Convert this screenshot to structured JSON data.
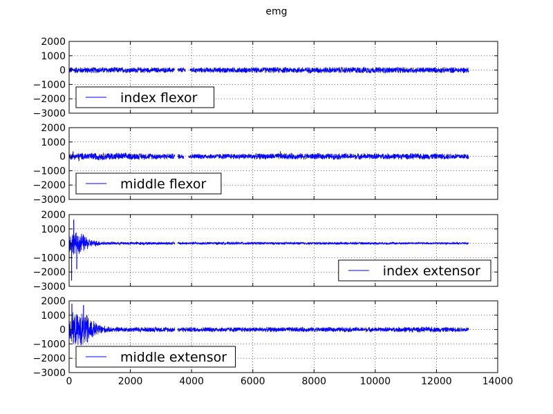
{
  "chart_data": {
    "type": "line",
    "title": "emg",
    "xlim": [
      0,
      14000
    ],
    "x_ticks": [
      "0",
      "2000",
      "4000",
      "6000",
      "8000",
      "10000",
      "12000",
      "14000"
    ],
    "grid": true,
    "line_color": "#0000ff",
    "panels": [
      {
        "series_name": "index flexor",
        "ylim": [
          -3000,
          2000
        ],
        "y_ticks": [
          "2000",
          "1000",
          "0",
          "−1000",
          "−2000",
          "−3000"
        ],
        "legend_position": "lower-left",
        "x_range": [
          0,
          13050
        ],
        "envelope": [
          [
            0,
            250
          ],
          [
            3500,
            200
          ],
          [
            9500,
            250
          ],
          [
            13050,
            220
          ]
        ],
        "spikes": [],
        "gaps": [
          [
            3450,
            3550
          ],
          [
            3800,
            3950
          ]
        ]
      },
      {
        "series_name": "middle flexor",
        "ylim": [
          -3000,
          2000
        ],
        "y_ticks": [
          "2000",
          "1000",
          "0",
          "−1000",
          "−2000",
          "−3000"
        ],
        "legend_position": "lower-left",
        "x_range": [
          0,
          13050
        ],
        "envelope": [
          [
            0,
            250
          ],
          [
            1000,
            300
          ],
          [
            4000,
            200
          ],
          [
            7000,
            240
          ],
          [
            13050,
            230
          ]
        ],
        "spikes": [
          [
            130,
            350
          ],
          [
            320,
            -320
          ],
          [
            6900,
            350
          ]
        ],
        "gaps": [
          [
            3450,
            3550
          ],
          [
            3750,
            3900
          ]
        ]
      },
      {
        "series_name": "index extensor",
        "ylim": [
          -3000,
          2000
        ],
        "y_ticks": [
          "2000",
          "1000",
          "0",
          "−1000",
          "−2000",
          "−3000"
        ],
        "legend_position": "lower-right",
        "x_range": [
          0,
          13050
        ],
        "envelope": [
          [
            0,
            900
          ],
          [
            400,
            800
          ],
          [
            700,
            300
          ],
          [
            1200,
            120
          ],
          [
            13050,
            80
          ]
        ],
        "spikes": [
          [
            80,
            -2600
          ],
          [
            150,
            1650
          ],
          [
            250,
            -1800
          ],
          [
            360,
            -600
          ]
        ],
        "gaps": [
          [
            3450,
            3550
          ]
        ]
      },
      {
        "series_name": "middle extensor",
        "ylim": [
          -3000,
          2000
        ],
        "y_ticks": [
          "2000",
          "1000",
          "0",
          "−1000",
          "−2000",
          "−3000"
        ],
        "legend_position": "lower-left",
        "x_range": [
          0,
          13050
        ],
        "envelope": [
          [
            0,
            1200
          ],
          [
            500,
            1300
          ],
          [
            900,
            500
          ],
          [
            1300,
            200
          ],
          [
            10500,
            180
          ],
          [
            11000,
            220
          ],
          [
            13050,
            180
          ]
        ],
        "spikes": [
          [
            90,
            1800
          ],
          [
            200,
            -900
          ],
          [
            470,
            1700
          ],
          [
            600,
            -900
          ]
        ],
        "gaps": [
          [
            3450,
            3550
          ]
        ]
      }
    ]
  }
}
